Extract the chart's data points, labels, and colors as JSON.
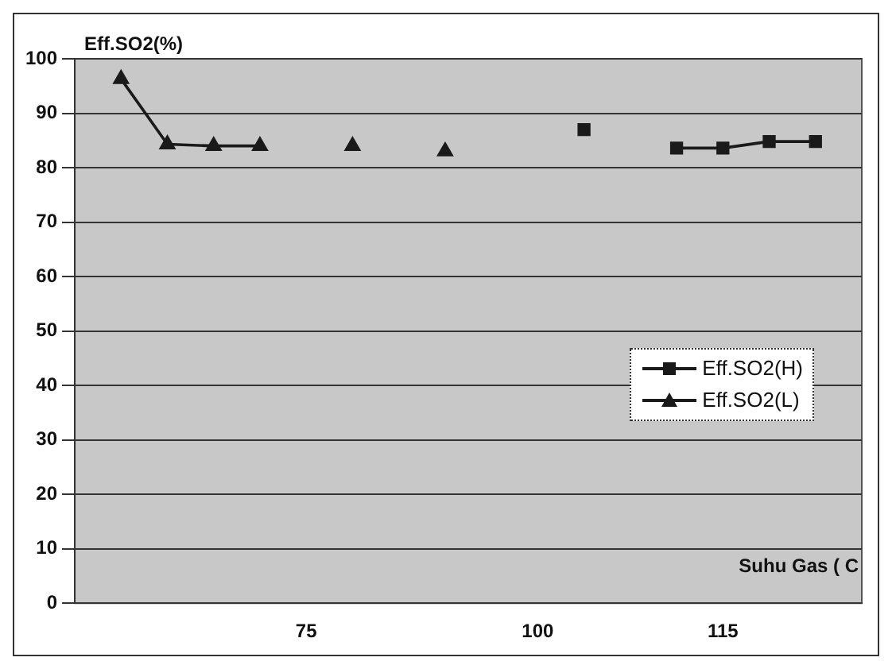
{
  "chart_data": {
    "type": "line",
    "xlabel": "Suhu Gas ( C",
    "ylabel": "Eff.SO2(%)",
    "categories": [
      null,
      null,
      null,
      null,
      null,
      "75",
      null,
      null,
      null,
      null,
      "100",
      null,
      null,
      null,
      "115",
      null,
      null,
      null
    ],
    "series": [
      {
        "name": "Eff.SO2(H)",
        "color": "#1a1a1a",
        "marker": "square",
        "values": [
          null,
          null,
          null,
          null,
          null,
          null,
          null,
          null,
          null,
          null,
          null,
          87,
          null,
          83.6,
          83.6,
          84.8,
          84.8,
          null
        ]
      },
      {
        "name": "Eff.SO2(L)",
        "color": "#1a1a1a",
        "marker": "triangle",
        "values": [
          null,
          96.3,
          84.3,
          84,
          84,
          null,
          84,
          null,
          83,
          null,
          null,
          null,
          null,
          null,
          null,
          null,
          null,
          null
        ]
      }
    ],
    "ylim": [
      0,
      100
    ],
    "yticks": [
      0,
      10,
      20,
      30,
      40,
      50,
      60,
      70,
      80,
      90,
      100
    ],
    "grid": "y",
    "legend": "right",
    "line_style": "solid"
  }
}
